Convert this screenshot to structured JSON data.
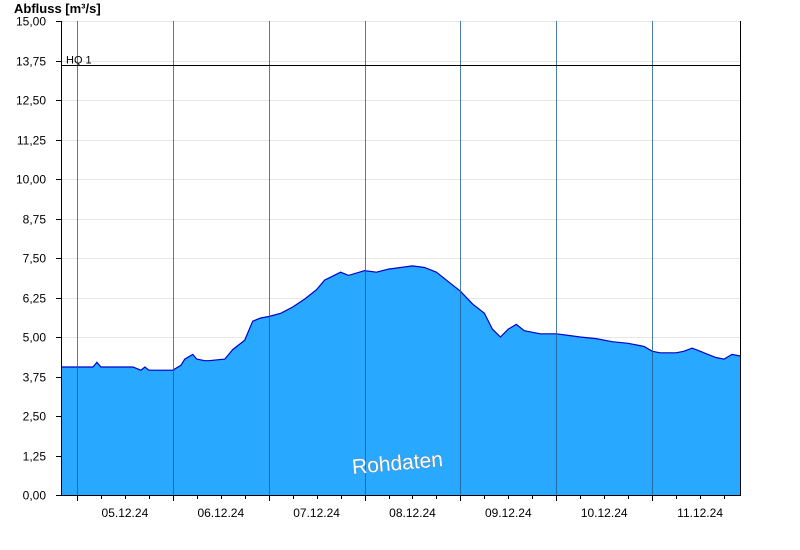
{
  "chart_data": {
    "type": "area",
    "ylabel": "Abfluss [m³/s]",
    "ylim": [
      0,
      15
    ],
    "yticks": [
      "0,00",
      "1,25",
      "2,50",
      "3,75",
      "5,00",
      "6,25",
      "7,50",
      "8,75",
      "10,00",
      "11,25",
      "12,50",
      "13,75",
      "15,00"
    ],
    "xlim": [
      "2024-12-04T20:00",
      "2024-12-11T22:00"
    ],
    "xticks": [
      "05.12.24",
      "06.12.24",
      "07.12.24",
      "08.12.24",
      "09.12.24",
      "10.12.24",
      "11.12.24"
    ],
    "grid": true,
    "colors": {
      "area": "#29a8ff",
      "line": "#0000cc",
      "threshold": "#000000"
    },
    "threshold": {
      "label": "HQ 1",
      "value": 13.6
    },
    "watermark": "Rohdaten",
    "series": [
      {
        "x": [
          "2024-12-04T20:00",
          "2024-12-05T04:00",
          "2024-12-05T05:00",
          "2024-12-05T06:00",
          "2024-12-05T14:00",
          "2024-12-05T16:00",
          "2024-12-05T17:00",
          "2024-12-05T18:00",
          "2024-12-05T19:00",
          "2024-12-06T00:00",
          "2024-12-06T02:00",
          "2024-12-06T03:00",
          "2024-12-06T05:00",
          "2024-12-06T06:00",
          "2024-12-06T08:00",
          "2024-12-06T09:00",
          "2024-12-06T13:00",
          "2024-12-06T15:00",
          "2024-12-06T18:00",
          "2024-12-06T20:00",
          "2024-12-06T22:00",
          "2024-12-07T00:00",
          "2024-12-07T03:00",
          "2024-12-07T06:00",
          "2024-12-07T09:00",
          "2024-12-07T12:00",
          "2024-12-07T14:00",
          "2024-12-07T18:00",
          "2024-12-07T20:00",
          "2024-12-08T00:00",
          "2024-12-08T03:00",
          "2024-12-08T06:00",
          "2024-12-08T09:00",
          "2024-12-08T12:00",
          "2024-12-08T15:00",
          "2024-12-08T18:00",
          "2024-12-08T21:00",
          "2024-12-09T00:00",
          "2024-12-09T03:00",
          "2024-12-09T06:00",
          "2024-12-09T08:00",
          "2024-12-09T10:00",
          "2024-12-09T12:00",
          "2024-12-09T14:00",
          "2024-12-09T16:00",
          "2024-12-09T20:00",
          "2024-12-10T00:00",
          "2024-12-10T03:00",
          "2024-12-10T06:00",
          "2024-12-10T10:00",
          "2024-12-10T14:00",
          "2024-12-10T18:00",
          "2024-12-10T22:00",
          "2024-12-11T00:00",
          "2024-12-11T02:00",
          "2024-12-11T06:00",
          "2024-12-11T08:00",
          "2024-12-11T10:00",
          "2024-12-11T12:00",
          "2024-12-11T14:00",
          "2024-12-11T16:00",
          "2024-12-11T18:00",
          "2024-12-11T20:00",
          "2024-12-11T22:00"
        ],
        "values": [
          4.05,
          4.05,
          4.2,
          4.05,
          4.05,
          3.95,
          4.05,
          3.95,
          3.95,
          3.95,
          4.1,
          4.3,
          4.45,
          4.3,
          4.25,
          4.25,
          4.3,
          4.6,
          4.9,
          5.5,
          5.6,
          5.65,
          5.75,
          5.95,
          6.2,
          6.5,
          6.8,
          7.05,
          6.95,
          7.1,
          7.05,
          7.15,
          7.2,
          7.25,
          7.2,
          7.05,
          6.75,
          6.45,
          6.05,
          5.75,
          5.25,
          5.0,
          5.25,
          5.4,
          5.2,
          5.1,
          5.1,
          5.05,
          5.0,
          4.95,
          4.85,
          4.8,
          4.7,
          4.55,
          4.5,
          4.5,
          4.55,
          4.65,
          4.55,
          4.45,
          4.35,
          4.3,
          4.45,
          4.4
        ]
      }
    ]
  }
}
